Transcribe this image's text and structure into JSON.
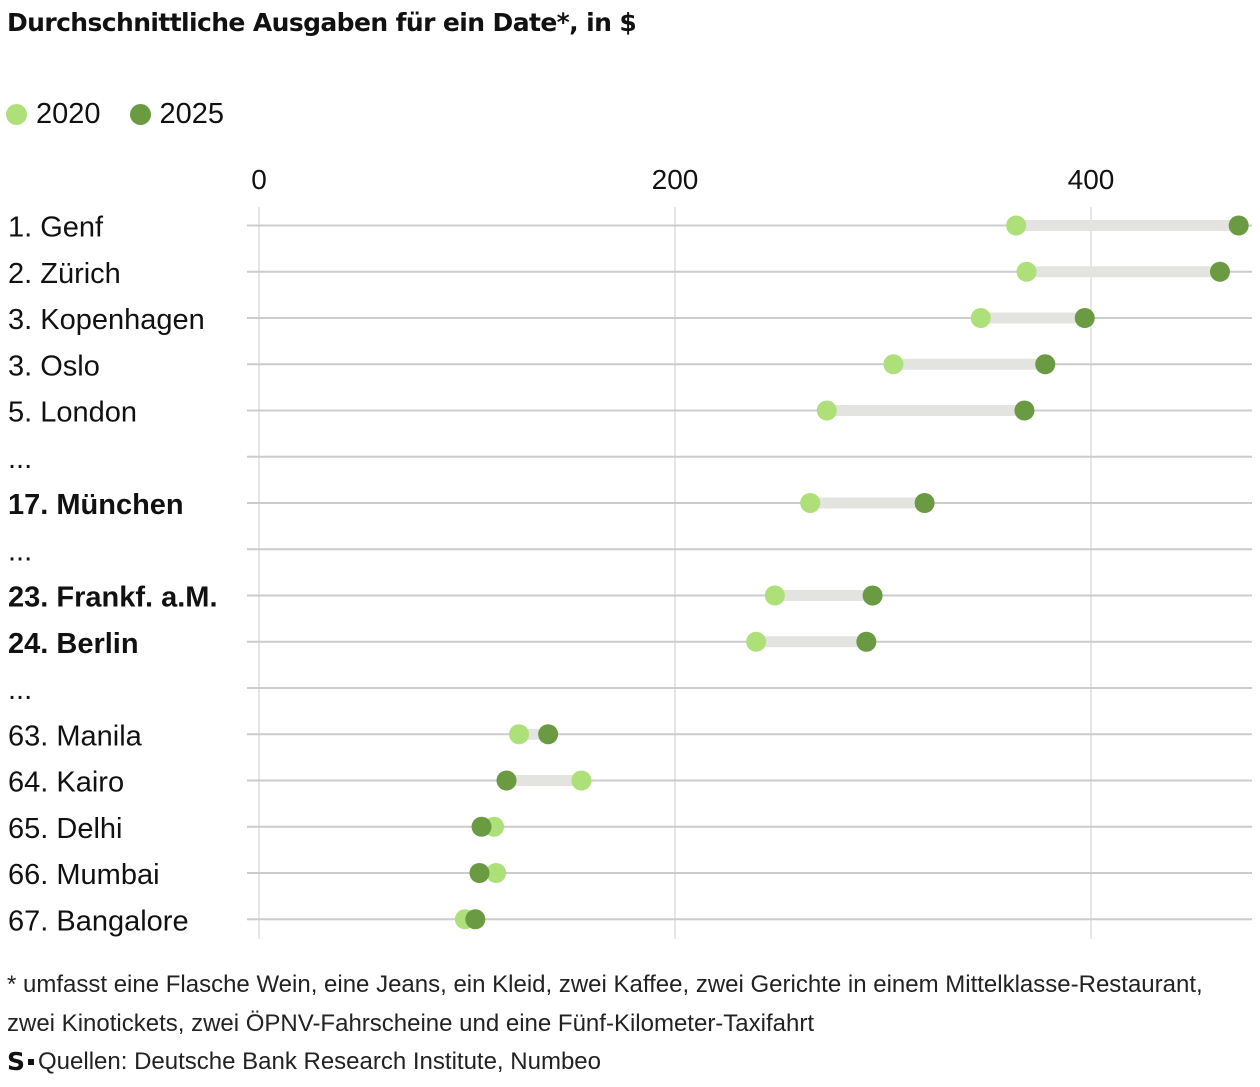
{
  "header": {
    "title": "Durchschnittliche Ausgaben für ein Date*, in $"
  },
  "legend": [
    {
      "label": "2020",
      "color": "#aee07a"
    },
    {
      "label": "2025",
      "color": "#6a9b42"
    }
  ],
  "chart_data": {
    "type": "dumbbell",
    "title": "Durchschnittliche Ausgaben für ein Date*, in $",
    "xlim": [
      0,
      480
    ],
    "x_ticks": [
      {
        "value": 0,
        "label": "0"
      },
      {
        "value": 200,
        "label": "200"
      },
      {
        "value": 400,
        "label": "400"
      }
    ],
    "grid": true,
    "legend_position": "top-left",
    "series": [
      {
        "name": "2020",
        "color": "#aee07a"
      },
      {
        "name": "2025",
        "color": "#6a9b42"
      }
    ],
    "rows": [
      {
        "label": "1. Genf",
        "bold": false,
        "v2020": 364,
        "v2025": 471
      },
      {
        "label": "2. Zürich",
        "bold": false,
        "v2020": 369,
        "v2025": 462
      },
      {
        "label": "3. Kopenhagen",
        "bold": false,
        "v2020": 347,
        "v2025": 397
      },
      {
        "label": "3. Oslo",
        "bold": false,
        "v2020": 305,
        "v2025": 378
      },
      {
        "label": "5. London",
        "bold": false,
        "v2020": 273,
        "v2025": 368
      },
      {
        "label": "...",
        "bold": false,
        "v2020": null,
        "v2025": null
      },
      {
        "label": "17. München",
        "bold": true,
        "v2020": 265,
        "v2025": 320
      },
      {
        "label": "...",
        "bold": false,
        "v2020": null,
        "v2025": null
      },
      {
        "label": "23. Frankf. a.M.",
        "bold": true,
        "v2020": 248,
        "v2025": 295
      },
      {
        "label": "24. Berlin",
        "bold": true,
        "v2020": 239,
        "v2025": 292
      },
      {
        "label": "...",
        "bold": false,
        "v2020": null,
        "v2025": null
      },
      {
        "label": "63. Manila",
        "bold": false,
        "v2020": 125,
        "v2025": 139
      },
      {
        "label": "64. Kairo",
        "bold": false,
        "v2020": 155,
        "v2025": 119
      },
      {
        "label": "65. Delhi",
        "bold": false,
        "v2020": 113,
        "v2025": 107
      },
      {
        "label": "66. Mumbai",
        "bold": false,
        "v2020": 114,
        "v2025": 106
      },
      {
        "label": "67. Bangalore",
        "bold": false,
        "v2020": 99,
        "v2025": 104
      }
    ]
  },
  "footnote": {
    "text": "* umfasst eine Flasche Wein, eine Jeans, ein Kleid, zwei Kaffee, zwei Gerichte in einem Mittelklasse-Restaurant, zwei Kinotickets, zwei ÖPNV-Fahrscheine und eine Fünf-Kilometer-Taxifahrt"
  },
  "source": {
    "logo": "S",
    "text": "Quellen: Deutsche Bank Research Institute, Numbeo"
  }
}
